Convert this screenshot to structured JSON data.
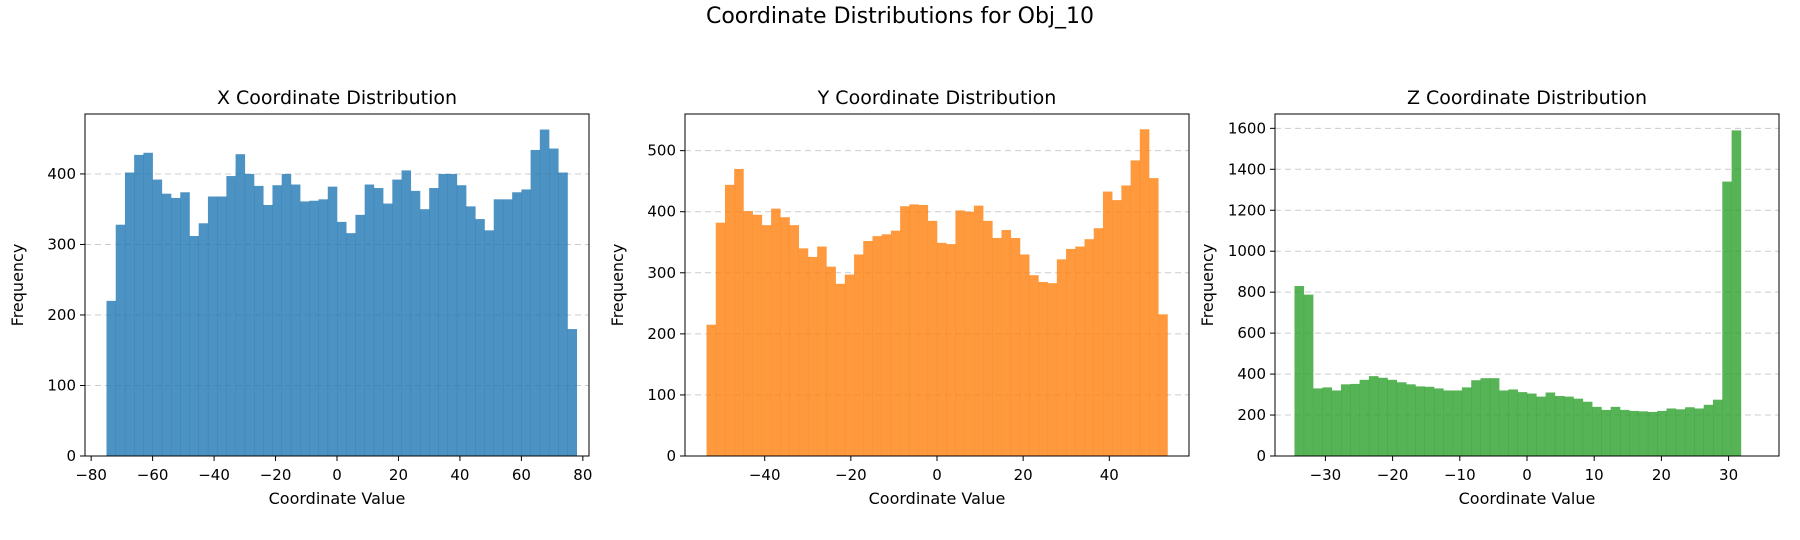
{
  "suptitle": "Coordinate Distributions for Obj_10",
  "chart_data": [
    {
      "type": "bar",
      "title": "X Coordinate Distribution",
      "xlabel": "Coordinate Value",
      "ylabel": "Frequency",
      "color": "#1f77b4",
      "xlim": [
        -82,
        82
      ],
      "ylim": [
        0,
        485
      ],
      "xticks": [
        -80,
        -60,
        -40,
        -20,
        0,
        20,
        40,
        60,
        80
      ],
      "yticks": [
        0,
        100,
        200,
        300,
        400
      ],
      "bin_start": -75,
      "bin_width": 3,
      "values": [
        220,
        328,
        402,
        427,
        430,
        392,
        372,
        366,
        374,
        312,
        330,
        368,
        368,
        397,
        428,
        400,
        383,
        356,
        384,
        400,
        385,
        361,
        362,
        364,
        382,
        332,
        316,
        342,
        385,
        380,
        358,
        392,
        405,
        376,
        350,
        380,
        400,
        400,
        384,
        354,
        336,
        320,
        364,
        364,
        374,
        378,
        434,
        463,
        436,
        402,
        180
      ]
    },
    {
      "type": "bar",
      "title": "Y Coordinate Distribution",
      "xlabel": "Coordinate Value",
      "ylabel": "Frequency",
      "color": "#ff7f0e",
      "xlim": [
        -58.5,
        58.5
      ],
      "ylim": [
        0,
        560
      ],
      "xticks": [
        -40,
        -20,
        0,
        20,
        40
      ],
      "yticks": [
        0,
        100,
        200,
        300,
        400,
        500
      ],
      "bin_start": -53.5,
      "bin_width": 2.14,
      "values": [
        215,
        382,
        444,
        470,
        401,
        395,
        378,
        405,
        391,
        378,
        340,
        326,
        343,
        310,
        282,
        297,
        330,
        352,
        360,
        363,
        369,
        409,
        412,
        411,
        385,
        349,
        347,
        402,
        400,
        410,
        385,
        357,
        370,
        357,
        330,
        296,
        285,
        283,
        322,
        339,
        343,
        355,
        373,
        433,
        419,
        443,
        484,
        535,
        455,
        232
      ]
    },
    {
      "type": "bar",
      "title": "Z Coordinate Distribution",
      "xlabel": "Coordinate Value",
      "ylabel": "Frequency",
      "color": "#2ca02c",
      "xlim": [
        -37.5,
        37.5
      ],
      "ylim": [
        0,
        1670
      ],
      "xticks": [
        -30,
        -20,
        -10,
        0,
        10,
        20,
        30
      ],
      "yticks": [
        0,
        200,
        400,
        600,
        800,
        1000,
        1200,
        1400,
        1600
      ],
      "bin_start": -34.6,
      "bin_width": 1.384,
      "values": [
        830,
        788,
        330,
        335,
        320,
        350,
        352,
        372,
        390,
        382,
        372,
        360,
        350,
        340,
        338,
        330,
        320,
        320,
        335,
        370,
        380,
        380,
        320,
        325,
        312,
        305,
        290,
        310,
        293,
        290,
        280,
        265,
        240,
        225,
        240,
        225,
        220,
        218,
        215,
        220,
        232,
        228,
        238,
        232,
        250,
        275,
        1340,
        1590,
        0,
        0
      ]
    }
  ]
}
